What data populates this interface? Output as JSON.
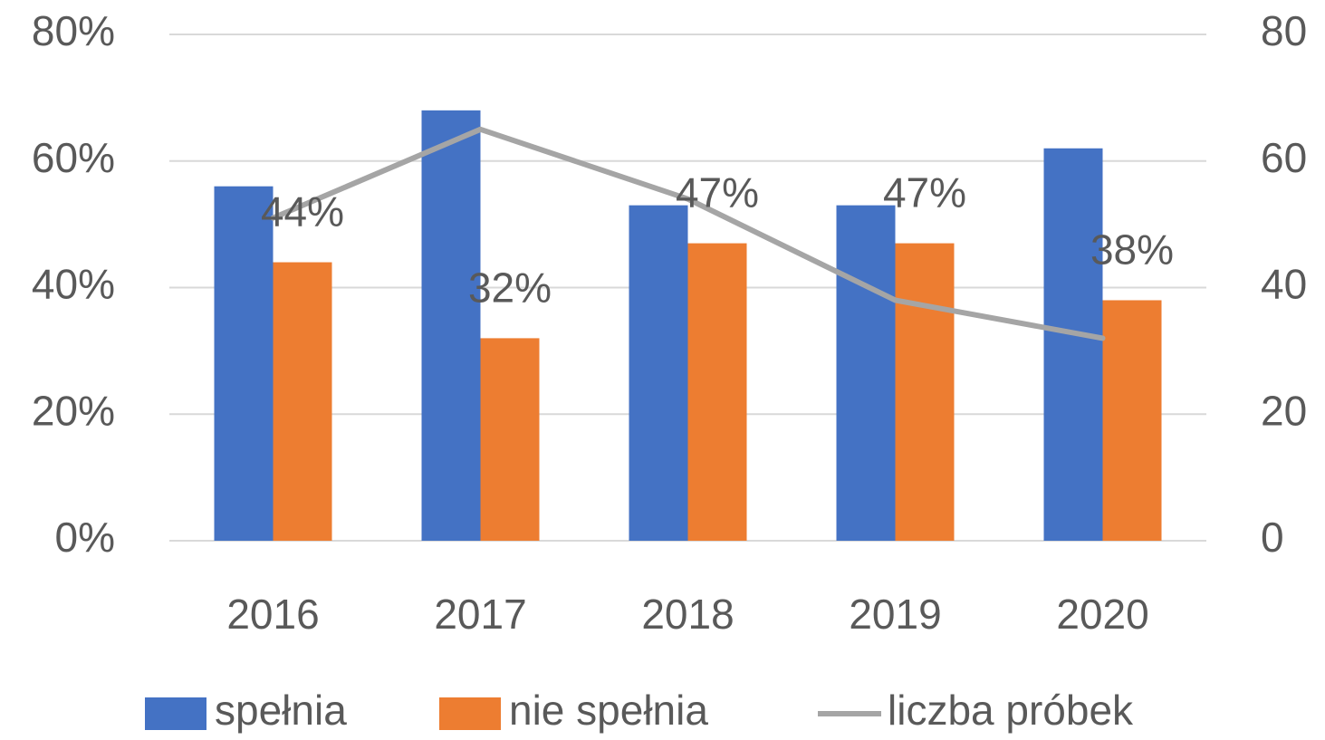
{
  "chart_data": {
    "type": "bar",
    "categories": [
      "2016",
      "2017",
      "2018",
      "2019",
      "2020"
    ],
    "series": [
      {
        "name": "spełnia",
        "color": "#4472c4",
        "values": [
          56,
          68,
          53,
          53,
          62
        ]
      },
      {
        "name": "nie spełnia",
        "color": "#ed7d31",
        "values": [
          44,
          32,
          47,
          47,
          38
        ],
        "value_labels": [
          "44%",
          "32%",
          "47%",
          "47%",
          "38%"
        ]
      },
      {
        "name": "liczba próbek",
        "type": "line",
        "axis": "y2",
        "color": "#a5a5a5",
        "values": [
          51,
          65,
          54,
          38,
          32
        ]
      }
    ],
    "ylim": [
      0,
      80
    ],
    "yticks": [
      {
        "value": 0,
        "label": "0%"
      },
      {
        "value": 20,
        "label": "20%"
      },
      {
        "value": 40,
        "label": "40%"
      },
      {
        "value": 60,
        "label": "60%"
      },
      {
        "value": 80,
        "label": "80%"
      }
    ],
    "y2lim": [
      0,
      80
    ],
    "y2ticks": [
      0,
      20,
      40,
      60,
      80
    ],
    "grid": true,
    "legend": "bottom"
  }
}
